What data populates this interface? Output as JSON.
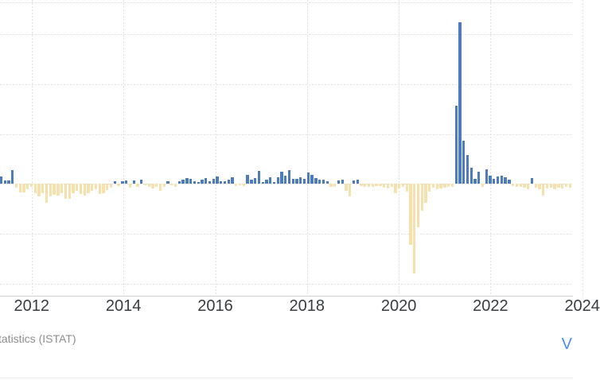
{
  "chart": {
    "source_text": "tatistics (ISTAT)",
    "link_text": "V",
    "colors": {
      "positive_bar": "#4d7cbe",
      "negative_bar": "#f6e0ac",
      "gridline": "#e2e2e2",
      "axis_line": "#cfcfcf",
      "tick_label": "#383d41",
      "source_text": "#8e8e8e",
      "link": "#4a8cf5"
    }
  },
  "chart_data": {
    "type": "bar",
    "title": "",
    "xlabel": "",
    "ylabel": "",
    "frequency": "monthly",
    "x_start": "2011-03",
    "x_tick_labels": [
      "2012",
      "2014",
      "2016",
      "2018",
      "2020",
      "2022",
      "2024"
    ],
    "y_gridline_values": [
      75,
      50,
      25,
      0,
      -25,
      -50
    ],
    "ylim": [
      -57,
      92
    ],
    "grid": "dashed",
    "legend": "none",
    "values": [
      3.5,
      1.6,
      1.7,
      6.8,
      -2.1,
      -4.4,
      -4.4,
      -2.7,
      -1.5,
      -4.8,
      -6.5,
      -4.8,
      -9.6,
      -6.5,
      -5.5,
      -6.1,
      -4.9,
      -7.7,
      -7.7,
      -4.8,
      -3.5,
      -5.2,
      -5.9,
      -4.8,
      -3.5,
      -2.8,
      -5.1,
      -4.8,
      -3.1,
      -1.9,
      1.2,
      -1.2,
      1.2,
      1.5,
      -1.9,
      1.5,
      -1.6,
      1.9,
      -0.8,
      -1.6,
      -2.4,
      -1.5,
      -3.5,
      -1.6,
      1.3,
      -0.8,
      -1.6,
      1.3,
      1.9,
      2.8,
      2.4,
      1.3,
      0.8,
      2.1,
      2.8,
      1.3,
      2.4,
      3.5,
      1.3,
      1.3,
      1.9,
      3.2,
      -1.1,
      -0.8,
      -1.1,
      4.3,
      1.9,
      2.7,
      6.4,
      0.8,
      2.1,
      3.2,
      0.8,
      3.2,
      6.1,
      4.0,
      6.9,
      2.4,
      2.4,
      3.2,
      2.4,
      5.6,
      4.5,
      2.9,
      1.9,
      2.0,
      1.3,
      -1.5,
      -1.5,
      1.6,
      2.1,
      -3.5,
      -6.4,
      1.6,
      1.9,
      -1.0,
      -1.5,
      -1.5,
      -1.6,
      -1.3,
      -1.3,
      -2.1,
      -2.5,
      -1.7,
      -4.8,
      -2.5,
      -1.7,
      -4.1,
      -30.7,
      -45.0,
      -22.0,
      -13.4,
      -9.4,
      -4.1,
      -2.1,
      -2.8,
      -2.5,
      -2.1,
      -1.7,
      -1.5,
      39.1,
      81.2,
      21.8,
      14.5,
      7.9,
      2.5,
      5.9,
      -1.4,
      7.2,
      4.1,
      2.3,
      3.5,
      4.0,
      3.2,
      1.9,
      -1.1,
      -1.6,
      -1.5,
      -2.1,
      -2.8,
      2.8,
      -1.9,
      -2.8,
      -5.9,
      -2.5,
      -1.9,
      -2.8,
      -1.9,
      -2.5,
      -1.5,
      -1.9
    ]
  }
}
